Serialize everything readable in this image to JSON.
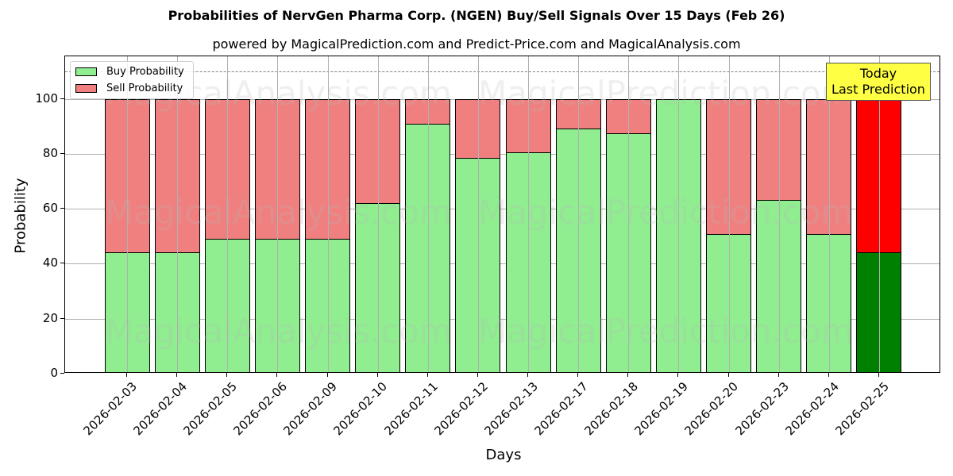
{
  "chart_data": {
    "type": "bar",
    "stacked": true,
    "title": "Probabilities of NervGen Pharma Corp. (NGEN) Buy/Sell Signals Over 15 Days (Feb 26)",
    "subtitle": "powered by MagicalPrediction.com and Predict-Price.com and MagicalAnalysis.com",
    "xlabel": "Days",
    "ylabel": "Probability",
    "ylim": [
      0,
      115.5
    ],
    "yticks": [
      0,
      20,
      40,
      60,
      80,
      100
    ],
    "grid": true,
    "reference_line": 110,
    "legend_position": "upper left",
    "categories": [
      "2026-02-03",
      "2026-02-04",
      "2026-02-05",
      "2026-02-06",
      "2026-02-09",
      "2026-02-10",
      "2026-02-11",
      "2026-02-12",
      "2026-02-13",
      "2026-02-17",
      "2026-02-18",
      "2026-02-19",
      "2026-02-20",
      "2026-02-23",
      "2026-02-24",
      "2026-02-25"
    ],
    "series": [
      {
        "name": "Buy Probability",
        "color": "#90ee90",
        "values": [
          44.2,
          44.2,
          49.1,
          49.1,
          49.1,
          62.1,
          91.0,
          78.6,
          80.6,
          89.3,
          87.6,
          100.0,
          50.9,
          63.3,
          50.9,
          44.2
        ]
      },
      {
        "name": "Sell Probability",
        "color": "#f08080",
        "values": [
          55.8,
          55.8,
          50.9,
          50.9,
          50.9,
          37.9,
          9.0,
          21.4,
          19.4,
          10.7,
          12.4,
          0.0,
          49.1,
          36.7,
          49.1,
          55.8
        ]
      }
    ],
    "highlight": {
      "index": 15,
      "buy_color": "#008000",
      "sell_color": "#ff0000"
    },
    "annotation": {
      "line1": "Today",
      "line2": "Last Prediction"
    },
    "watermarks": [
      "MagicalAnalysis.com",
      "MagicalPrediction.com"
    ]
  }
}
